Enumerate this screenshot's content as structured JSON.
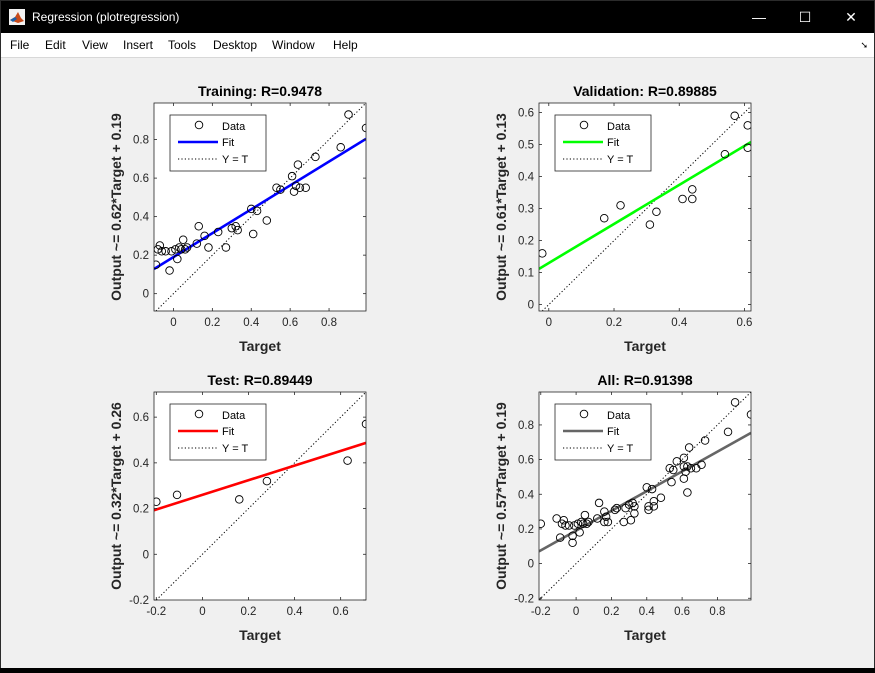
{
  "window": {
    "title": "Regression (plotregression)",
    "buttons": {
      "minimize": "—",
      "maximize": "☐",
      "close": "✕"
    }
  },
  "menubar": {
    "items": [
      {
        "label": "File"
      },
      {
        "label": "Edit"
      },
      {
        "label": "View"
      },
      {
        "label": "Insert"
      },
      {
        "label": "Tools"
      },
      {
        "label": "Desktop"
      },
      {
        "label": "Window"
      },
      {
        "label": "Help"
      }
    ],
    "dock_glyph": "➘"
  },
  "colors": {
    "training": "#0000ff",
    "validation": "#00ff00",
    "test": "#ff0000",
    "all": "#666666",
    "background": "#f0f0f0"
  },
  "chart_data": [
    {
      "type": "scatter",
      "title": "Training: R=0.9478",
      "xlabel": "Target",
      "ylabel": "Output ~= 0.62*Target + 0.19",
      "xlim": [
        -0.1,
        0.99
      ],
      "ylim": [
        -0.09,
        0.99
      ],
      "xticks": [
        0,
        0.2,
        0.4,
        0.6,
        0.8
      ],
      "yticks": [
        0,
        0.2,
        0.4,
        0.6,
        0.8
      ],
      "legend": [
        "Data",
        "Fit",
        "Y = T"
      ],
      "legend_position": "top-left",
      "fit": {
        "slope": 0.62,
        "intercept": 0.19,
        "color": "#0000ff"
      },
      "points": [
        [
          -0.09,
          0.15
        ],
        [
          -0.08,
          0.23
        ],
        [
          -0.07,
          0.25
        ],
        [
          -0.06,
          0.22
        ],
        [
          -0.04,
          0.22
        ],
        [
          -0.02,
          0.12
        ],
        [
          -0.01,
          0.22
        ],
        [
          0.01,
          0.23
        ],
        [
          0.02,
          0.18
        ],
        [
          0.03,
          0.24
        ],
        [
          0.04,
          0.23
        ],
        [
          0.05,
          0.28
        ],
        [
          0.06,
          0.23
        ],
        [
          0.07,
          0.24
        ],
        [
          0.12,
          0.26
        ],
        [
          0.13,
          0.35
        ],
        [
          0.16,
          0.3
        ],
        [
          0.18,
          0.24
        ],
        [
          0.23,
          0.32
        ],
        [
          0.27,
          0.24
        ],
        [
          0.3,
          0.34
        ],
        [
          0.32,
          0.35
        ],
        [
          0.33,
          0.33
        ],
        [
          0.4,
          0.44
        ],
        [
          0.41,
          0.31
        ],
        [
          0.43,
          0.43
        ],
        [
          0.48,
          0.38
        ],
        [
          0.53,
          0.55
        ],
        [
          0.55,
          0.54
        ],
        [
          0.61,
          0.61
        ],
        [
          0.62,
          0.53
        ],
        [
          0.63,
          0.56
        ],
        [
          0.64,
          0.67
        ],
        [
          0.65,
          0.55
        ],
        [
          0.68,
          0.55
        ],
        [
          0.73,
          0.71
        ],
        [
          0.86,
          0.76
        ],
        [
          0.9,
          0.93
        ],
        [
          0.99,
          0.86
        ]
      ]
    },
    {
      "type": "scatter",
      "title": "Validation: R=0.89885",
      "xlabel": "Target",
      "ylabel": "Output ~= 0.61*Target + 0.13",
      "xlim": [
        -0.03,
        0.62
      ],
      "ylim": [
        -0.02,
        0.63
      ],
      "xticks": [
        0,
        0.2,
        0.4,
        0.6
      ],
      "yticks": [
        0,
        0.1,
        0.2,
        0.3,
        0.4,
        0.5,
        0.6
      ],
      "legend": [
        "Data",
        "Fit",
        "Y = T"
      ],
      "legend_position": "top-left",
      "fit": {
        "slope": 0.61,
        "intercept": 0.13,
        "color": "#00ff00"
      },
      "points": [
        [
          -0.02,
          0.16
        ],
        [
          0.17,
          0.27
        ],
        [
          0.22,
          0.31
        ],
        [
          0.31,
          0.25
        ],
        [
          0.33,
          0.29
        ],
        [
          0.41,
          0.33
        ],
        [
          0.44,
          0.33
        ],
        [
          0.44,
          0.36
        ],
        [
          0.54,
          0.47
        ],
        [
          0.57,
          0.59
        ],
        [
          0.61,
          0.56
        ],
        [
          0.61,
          0.49
        ]
      ]
    },
    {
      "type": "scatter",
      "title": "Test: R=0.89449",
      "xlabel": "Target",
      "ylabel": "Output ~= 0.32*Target + 0.26",
      "xlim": [
        -0.21,
        0.71
      ],
      "ylim": [
        -0.2,
        0.71
      ],
      "xticks": [
        -0.2,
        0,
        0.2,
        0.4,
        0.6
      ],
      "yticks": [
        -0.2,
        0,
        0.2,
        0.4,
        0.6
      ],
      "legend": [
        "Data",
        "Fit",
        "Y = T"
      ],
      "legend_position": "top-left",
      "fit": {
        "slope": 0.32,
        "intercept": 0.26,
        "color": "#ff0000"
      },
      "points": [
        [
          -0.2,
          0.23
        ],
        [
          -0.11,
          0.26
        ],
        [
          0.16,
          0.24
        ],
        [
          0.28,
          0.32
        ],
        [
          0.63,
          0.41
        ],
        [
          0.71,
          0.57
        ]
      ]
    },
    {
      "type": "scatter",
      "title": "All: R=0.91398",
      "xlabel": "Target",
      "ylabel": "Output ~= 0.57*Target + 0.19",
      "xlim": [
        -0.21,
        0.99
      ],
      "ylim": [
        -0.21,
        0.99
      ],
      "xticks": [
        -0.2,
        0,
        0.2,
        0.4,
        0.6,
        0.8
      ],
      "yticks": [
        -0.2,
        0,
        0.2,
        0.4,
        0.6,
        0.8
      ],
      "legend": [
        "Data",
        "Fit",
        "Y = T"
      ],
      "legend_position": "top-left",
      "fit": {
        "slope": 0.57,
        "intercept": 0.19,
        "color": "#666666"
      },
      "points": [
        [
          -0.2,
          0.23
        ],
        [
          -0.11,
          0.26
        ],
        [
          -0.09,
          0.15
        ],
        [
          -0.08,
          0.23
        ],
        [
          -0.07,
          0.25
        ],
        [
          -0.06,
          0.22
        ],
        [
          -0.04,
          0.22
        ],
        [
          -0.02,
          0.16
        ],
        [
          -0.02,
          0.12
        ],
        [
          -0.01,
          0.22
        ],
        [
          0.01,
          0.23
        ],
        [
          0.02,
          0.18
        ],
        [
          0.03,
          0.24
        ],
        [
          0.04,
          0.23
        ],
        [
          0.05,
          0.28
        ],
        [
          0.06,
          0.23
        ],
        [
          0.07,
          0.24
        ],
        [
          0.12,
          0.26
        ],
        [
          0.13,
          0.35
        ],
        [
          0.16,
          0.3
        ],
        [
          0.16,
          0.24
        ],
        [
          0.17,
          0.27
        ],
        [
          0.18,
          0.24
        ],
        [
          0.22,
          0.31
        ],
        [
          0.23,
          0.32
        ],
        [
          0.27,
          0.24
        ],
        [
          0.28,
          0.32
        ],
        [
          0.3,
          0.34
        ],
        [
          0.31,
          0.25
        ],
        [
          0.32,
          0.35
        ],
        [
          0.33,
          0.33
        ],
        [
          0.33,
          0.29
        ],
        [
          0.4,
          0.44
        ],
        [
          0.41,
          0.31
        ],
        [
          0.41,
          0.33
        ],
        [
          0.43,
          0.43
        ],
        [
          0.44,
          0.33
        ],
        [
          0.44,
          0.36
        ],
        [
          0.48,
          0.38
        ],
        [
          0.53,
          0.55
        ],
        [
          0.54,
          0.47
        ],
        [
          0.55,
          0.54
        ],
        [
          0.57,
          0.59
        ],
        [
          0.61,
          0.61
        ],
        [
          0.61,
          0.56
        ],
        [
          0.61,
          0.49
        ],
        [
          0.62,
          0.53
        ],
        [
          0.63,
          0.56
        ],
        [
          0.63,
          0.41
        ],
        [
          0.64,
          0.67
        ],
        [
          0.65,
          0.55
        ],
        [
          0.68,
          0.55
        ],
        [
          0.71,
          0.57
        ],
        [
          0.73,
          0.71
        ],
        [
          0.86,
          0.76
        ],
        [
          0.9,
          0.93
        ],
        [
          0.99,
          0.86
        ]
      ]
    }
  ]
}
